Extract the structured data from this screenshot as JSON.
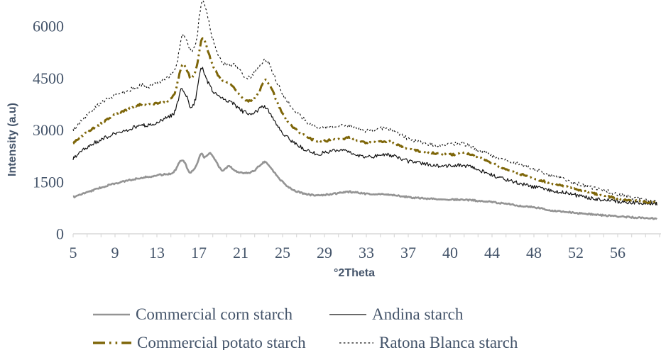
{
  "chart_data": {
    "type": "line",
    "title": "",
    "xlabel": "°2Theta",
    "ylabel": "Intensity (a.u)",
    "ylim": [
      0,
      6000
    ],
    "y_tick_labels": [
      "0",
      "1500",
      "3000",
      "4500",
      "6000"
    ],
    "y_tick_values": [
      0,
      1500,
      3000,
      4500,
      6000
    ],
    "x_tick_labels": [
      "5",
      "9",
      "13",
      "17",
      "21",
      "25",
      "29",
      "33",
      "37",
      "40",
      "44",
      "48",
      "52",
      "56"
    ],
    "x_tick_values": [
      5,
      9,
      13,
      17,
      21,
      25,
      29,
      33,
      37,
      40,
      44,
      48,
      52,
      56
    ],
    "grid": "off",
    "legend_position": "bottom",
    "axis_color": "#D9D9D9",
    "text_color": "#44546A",
    "series": [
      {
        "name": "Commercial corn starch",
        "color": "#949494",
        "style": "solid",
        "width": 2.6,
        "noise": 22,
        "seed": 7,
        "points": [
          [
            5,
            1060
          ],
          [
            6,
            1165
          ],
          [
            7,
            1270
          ],
          [
            8,
            1370
          ],
          [
            9,
            1450
          ],
          [
            10,
            1525
          ],
          [
            11,
            1590
          ],
          [
            11.6,
            1630
          ],
          [
            12.2,
            1645
          ],
          [
            13,
            1690
          ],
          [
            13.8,
            1720
          ],
          [
            14.6,
            1790
          ],
          [
            15.3,
            2120
          ],
          [
            15.7,
            2050
          ],
          [
            16.1,
            1780
          ],
          [
            16.7,
            1930
          ],
          [
            17.2,
            2290
          ],
          [
            17.6,
            2210
          ],
          [
            18.1,
            2330
          ],
          [
            18.6,
            2120
          ],
          [
            19.2,
            1840
          ],
          [
            19.9,
            1960
          ],
          [
            20.4,
            1830
          ],
          [
            21,
            1780
          ],
          [
            21.7,
            1760
          ],
          [
            22.3,
            1830
          ],
          [
            22.9,
            2000
          ],
          [
            23.3,
            2080
          ],
          [
            23.7,
            1980
          ],
          [
            24.3,
            1740
          ],
          [
            25,
            1500
          ],
          [
            25.7,
            1330
          ],
          [
            26.5,
            1210
          ],
          [
            27.4,
            1140
          ],
          [
            28.3,
            1110
          ],
          [
            29.2,
            1130
          ],
          [
            30.2,
            1170
          ],
          [
            31.2,
            1210
          ],
          [
            31.9,
            1200
          ],
          [
            32.8,
            1160
          ],
          [
            33.8,
            1150
          ],
          [
            34.8,
            1140
          ],
          [
            35.8,
            1110
          ],
          [
            36.8,
            1070
          ],
          [
            37.8,
            1030
          ],
          [
            38.8,
            1010
          ],
          [
            39.8,
            995
          ],
          [
            41,
            985
          ],
          [
            42,
            970
          ],
          [
            43,
            945
          ],
          [
            44.2,
            910
          ],
          [
            45.4,
            860
          ],
          [
            46.6,
            815
          ],
          [
            48,
            765
          ],
          [
            49.4,
            690
          ],
          [
            50.8,
            645
          ],
          [
            52.2,
            600
          ],
          [
            53.6,
            560
          ],
          [
            55,
            525
          ],
          [
            56.4,
            495
          ],
          [
            57.8,
            470
          ],
          [
            59.8,
            440
          ]
        ]
      },
      {
        "name": "Andina starch",
        "color": "#111111",
        "style": "solid",
        "width": 1.2,
        "noise": 58,
        "seed": 3,
        "points": [
          [
            5,
            2160
          ],
          [
            6,
            2430
          ],
          [
            7,
            2620
          ],
          [
            8,
            2760
          ],
          [
            9,
            2900
          ],
          [
            10,
            3000
          ],
          [
            11,
            3090
          ],
          [
            11.6,
            3150
          ],
          [
            12.2,
            3130
          ],
          [
            13,
            3240
          ],
          [
            14,
            3370
          ],
          [
            14.7,
            3520
          ],
          [
            15.3,
            4140
          ],
          [
            15.8,
            4000
          ],
          [
            16.2,
            3660
          ],
          [
            16.7,
            3920
          ],
          [
            17.2,
            4760
          ],
          [
            17.7,
            4500
          ],
          [
            18.2,
            4190
          ],
          [
            19,
            3930
          ],
          [
            19.8,
            3850
          ],
          [
            20.5,
            3710
          ],
          [
            21.2,
            3540
          ],
          [
            21.9,
            3480
          ],
          [
            22.6,
            3570
          ],
          [
            23.2,
            3680
          ],
          [
            23.8,
            3500
          ],
          [
            24.5,
            3130
          ],
          [
            25.3,
            2830
          ],
          [
            26.1,
            2640
          ],
          [
            27,
            2460
          ],
          [
            28,
            2330
          ],
          [
            29,
            2340
          ],
          [
            29.8,
            2400
          ],
          [
            30.7,
            2390
          ],
          [
            31.4,
            2380
          ],
          [
            32.2,
            2280
          ],
          [
            33,
            2220
          ],
          [
            33.8,
            2240
          ],
          [
            34.7,
            2290
          ],
          [
            35.5,
            2250
          ],
          [
            36.4,
            2150
          ],
          [
            37.3,
            2070
          ],
          [
            38.3,
            2010
          ],
          [
            39.3,
            1970
          ],
          [
            40.3,
            1960
          ],
          [
            41.3,
            1980
          ],
          [
            42.2,
            1900
          ],
          [
            43.2,
            1790
          ],
          [
            44.3,
            1670
          ],
          [
            45.4,
            1560
          ],
          [
            46.5,
            1470
          ],
          [
            47.6,
            1390
          ],
          [
            48.7,
            1310
          ],
          [
            49.8,
            1250
          ],
          [
            51,
            1180
          ],
          [
            52.3,
            1100
          ],
          [
            53.6,
            1030
          ],
          [
            55,
            970
          ],
          [
            56.4,
            925
          ],
          [
            57.8,
            890
          ],
          [
            59.8,
            860
          ]
        ]
      },
      {
        "name": "Commercial potato starch",
        "color": "#7E6609",
        "style": "dash-dot-dot",
        "width": 3,
        "noise": 26,
        "seed": 5,
        "points": [
          [
            5,
            2620
          ],
          [
            6,
            2860
          ],
          [
            7,
            3060
          ],
          [
            8,
            3260
          ],
          [
            9,
            3450
          ],
          [
            10,
            3570
          ],
          [
            11,
            3690
          ],
          [
            11.6,
            3750
          ],
          [
            12.2,
            3730
          ],
          [
            13,
            3770
          ],
          [
            14,
            3840
          ],
          [
            14.7,
            4070
          ],
          [
            15.4,
            4860
          ],
          [
            15.9,
            4700
          ],
          [
            16.3,
            4490
          ],
          [
            16.8,
            4820
          ],
          [
            17.3,
            5650
          ],
          [
            17.8,
            5350
          ],
          [
            18.3,
            4900
          ],
          [
            19.1,
            4470
          ],
          [
            19.9,
            4360
          ],
          [
            20.6,
            4120
          ],
          [
            21.3,
            3890
          ],
          [
            22,
            3850
          ],
          [
            22.7,
            4060
          ],
          [
            23.3,
            4440
          ],
          [
            23.9,
            4230
          ],
          [
            24.6,
            3720
          ],
          [
            25.4,
            3290
          ],
          [
            26.2,
            3030
          ],
          [
            27.1,
            2840
          ],
          [
            28,
            2710
          ],
          [
            29,
            2680
          ],
          [
            29.8,
            2730
          ],
          [
            30.7,
            2730
          ],
          [
            31.4,
            2790
          ],
          [
            32.2,
            2690
          ],
          [
            33,
            2630
          ],
          [
            33.8,
            2650
          ],
          [
            34.7,
            2670
          ],
          [
            35.5,
            2640
          ],
          [
            36.4,
            2520
          ],
          [
            37.3,
            2430
          ],
          [
            38.3,
            2360
          ],
          [
            39.3,
            2310
          ],
          [
            40.3,
            2290
          ],
          [
            41.2,
            2340
          ],
          [
            42.1,
            2290
          ],
          [
            43.1,
            2170
          ],
          [
            44.2,
            2010
          ],
          [
            45.3,
            1870
          ],
          [
            46.4,
            1760
          ],
          [
            47.5,
            1650
          ],
          [
            48.6,
            1550
          ],
          [
            49.7,
            1460
          ],
          [
            50.9,
            1370
          ],
          [
            52.2,
            1270
          ],
          [
            53.5,
            1180
          ],
          [
            54.9,
            1090
          ],
          [
            56.3,
            1010
          ],
          [
            57.7,
            950
          ],
          [
            59.8,
            890
          ]
        ]
      },
      {
        "name": "Ratona Blanca starch",
        "color": "#111111",
        "style": "dotted",
        "width": 1.15,
        "noise": 58,
        "seed": 9,
        "points": [
          [
            5,
            2990
          ],
          [
            6,
            3340
          ],
          [
            7,
            3630
          ],
          [
            8,
            3840
          ],
          [
            9,
            4010
          ],
          [
            10,
            4120
          ],
          [
            11,
            4230
          ],
          [
            11.6,
            4320
          ],
          [
            12.2,
            4250
          ],
          [
            13,
            4370
          ],
          [
            14,
            4510
          ],
          [
            14.8,
            4780
          ],
          [
            15.4,
            5750
          ],
          [
            15.9,
            5550
          ],
          [
            16.3,
            5290
          ],
          [
            16.8,
            5650
          ],
          [
            17.3,
            6760
          ],
          [
            17.8,
            6350
          ],
          [
            18.3,
            5650
          ],
          [
            19.1,
            5020
          ],
          [
            19.9,
            4860
          ],
          [
            20.5,
            4890
          ],
          [
            21.4,
            4530
          ],
          [
            22.2,
            4610
          ],
          [
            23.3,
            5030
          ],
          [
            23.9,
            4780
          ],
          [
            24.7,
            4220
          ],
          [
            25.5,
            3800
          ],
          [
            26.3,
            3520
          ],
          [
            27.2,
            3270
          ],
          [
            28.1,
            3110
          ],
          [
            29,
            3070
          ],
          [
            30,
            3090
          ],
          [
            31.1,
            3150
          ],
          [
            31.9,
            3070
          ],
          [
            32.8,
            2990
          ],
          [
            33.7,
            3010
          ],
          [
            34.8,
            3060
          ],
          [
            35.7,
            2960
          ],
          [
            36.6,
            2810
          ],
          [
            37.5,
            2690
          ],
          [
            38.5,
            2600
          ],
          [
            39.5,
            2570
          ],
          [
            40.5,
            2610
          ],
          [
            41.4,
            2590
          ],
          [
            42.3,
            2460
          ],
          [
            43.3,
            2340
          ],
          [
            44.3,
            2230
          ],
          [
            45.3,
            2130
          ],
          [
            46.3,
            2040
          ],
          [
            47.3,
            1940
          ],
          [
            48.3,
            1830
          ],
          [
            49.3,
            1730
          ],
          [
            50.3,
            1630
          ],
          [
            51.5,
            1510
          ],
          [
            52.8,
            1400
          ],
          [
            54.2,
            1290
          ],
          [
            55.6,
            1180
          ],
          [
            57,
            1080
          ],
          [
            58.3,
            1000
          ],
          [
            59.8,
            910
          ]
        ]
      }
    ]
  },
  "legend": {
    "items": [
      {
        "label": "Commercial corn starch"
      },
      {
        "label": "Andina starch"
      },
      {
        "label": "Commercial potato starch"
      },
      {
        "label": "Ratona Blanca starch"
      }
    ]
  }
}
